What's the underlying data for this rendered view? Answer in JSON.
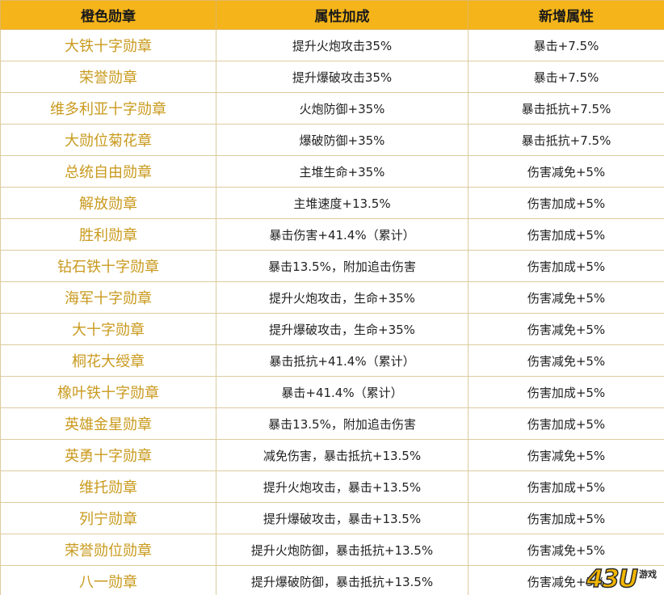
{
  "table": {
    "headers": [
      "橙色勋章",
      "属性加成",
      "新增属性"
    ],
    "rows": [
      {
        "name": "大铁十字勋章",
        "bonus": "提升火炮攻击35%",
        "extra": "暴击+7.5%"
      },
      {
        "name": "荣誉勋章",
        "bonus": "提升爆破攻击35%",
        "extra": "暴击+7.5%"
      },
      {
        "name": "维多利亚十字勋章",
        "bonus": "火炮防御+35%",
        "extra": "暴击抵抗+7.5%"
      },
      {
        "name": "大勋位菊花章",
        "bonus": "爆破防御+35%",
        "extra": "暴击抵抗+7.5%"
      },
      {
        "name": "总统自由勋章",
        "bonus": "主堆生命+35%",
        "extra": "伤害减免+5%"
      },
      {
        "name": "解放勋章",
        "bonus": "主堆速度+13.5%",
        "extra": "伤害加成+5%"
      },
      {
        "name": "胜利勋章",
        "bonus": "暴击伤害+41.4%（累计）",
        "extra": "伤害加成+5%"
      },
      {
        "name": "钻石铁十字勋章",
        "bonus": "暴击13.5%，附加追击伤害",
        "extra": "伤害加成+5%"
      },
      {
        "name": "海军十字勋章",
        "bonus": "提升火炮攻击，生命+35%",
        "extra": "伤害减免+5%"
      },
      {
        "name": "大十字勋章",
        "bonus": "提升爆破攻击，生命+35%",
        "extra": "伤害减免+5%"
      },
      {
        "name": "桐花大绶章",
        "bonus": "暴击抵抗+41.4%（累计）",
        "extra": "伤害减免+5%"
      },
      {
        "name": "橡叶铁十字勋章",
        "bonus": "暴击+41.4%（累计）",
        "extra": "伤害加成+5%"
      },
      {
        "name": "英雄金星勋章",
        "bonus": "暴击13.5%，附加追击伤害",
        "extra": "伤害加成+5%"
      },
      {
        "name": "英勇十字勋章",
        "bonus": "减免伤害，暴击抵抗+13.5%",
        "extra": "伤害减免+5%"
      },
      {
        "name": "维托勋章",
        "bonus": "提升火炮攻击，暴击+13.5%",
        "extra": "伤害加成+5%"
      },
      {
        "name": "列宁勋章",
        "bonus": "提升爆破攻击，暴击+13.5%",
        "extra": "伤害加成+5%"
      },
      {
        "name": "荣誉勋位勋章",
        "bonus": "提升火炮防御，暴击抵抗+13.5%",
        "extra": "伤害减免+5%"
      },
      {
        "name": "八一勋章",
        "bonus": "提升爆破防御，暴击抵抗+13.5%",
        "extra": "伤害减免+5%"
      }
    ]
  },
  "watermark": {
    "main": "43U",
    "sub": "游戏"
  },
  "colors": {
    "header_bg": "#f4b41a",
    "medal_name_text": "#c99a1e",
    "border": "#dccb9e"
  }
}
